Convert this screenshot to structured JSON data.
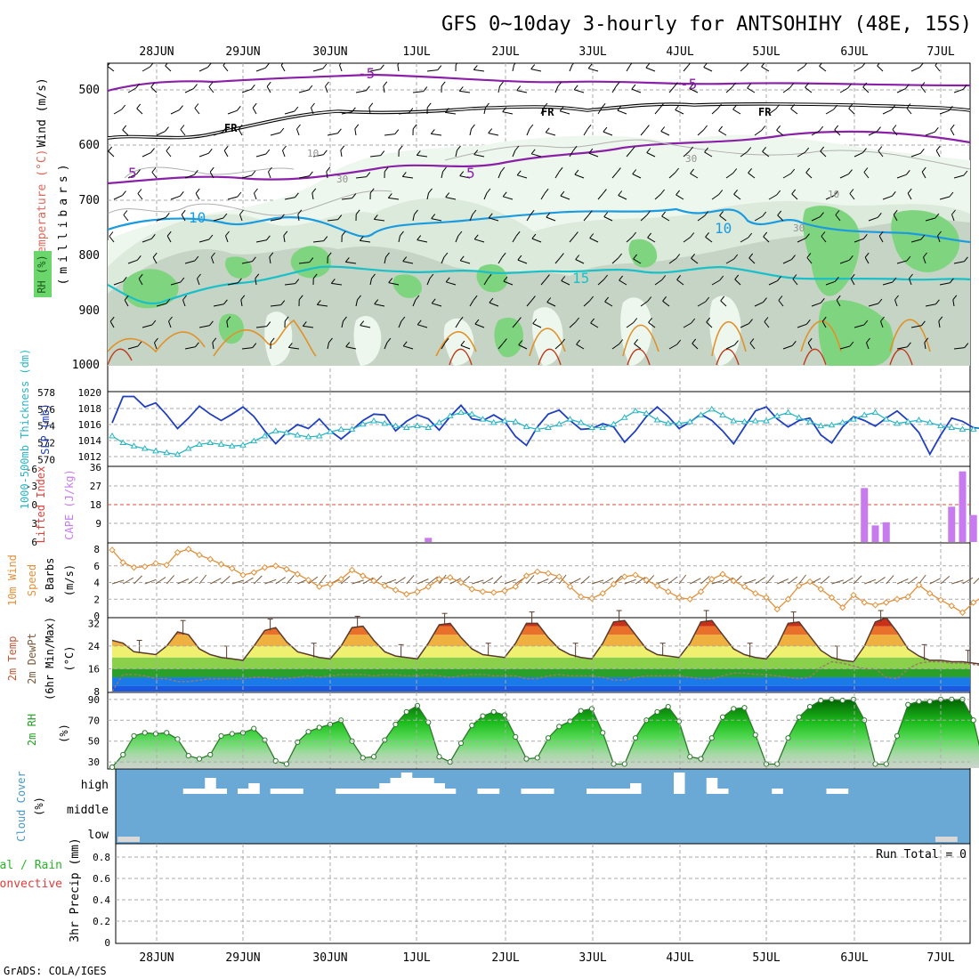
{
  "title": "GFS 0~10day 3-hourly for ANTSOHIHY (48E, 15S)",
  "credit": "GrADS: COLA/IGES",
  "dates": [
    "28JUN",
    "29JUN",
    "30JUN",
    "1JUL",
    "2JUL",
    "3JUL",
    "4JUL",
    "5JUL",
    "6JUL",
    "7JUL"
  ],
  "panels": {
    "upper": {
      "ylabel_wind": "Wind (m/s)",
      "ylabel_temp": "Temperature (°C)",
      "ylabel_rh": "RH (%)",
      "ylabel_units": "(millibars)",
      "ticks": [
        "500",
        "600",
        "700",
        "800",
        "900",
        "1000"
      ],
      "labels": {
        "m5": "-5",
        "fr": "FR",
        "p5": "5",
        "p10": "10",
        "p15": "15",
        "rh30": "30",
        "rh10": "10"
      }
    },
    "pressure": {
      "ylabel_thick": "1000-500mb Thickness (dm)",
      "ylabel_slp": "SLP (mb)",
      "thick_ticks": [
        "578",
        "576",
        "574",
        "572",
        "570"
      ],
      "slp_ticks": [
        "1020",
        "1018",
        "1016",
        "1014",
        "1012"
      ]
    },
    "instab": {
      "ylabel_li": "Lifted Index",
      "ylabel_cape": "CAPE (J/kg)",
      "li_ticks": [
        "-6",
        "-3",
        "0",
        "3",
        "6"
      ],
      "cape_ticks": [
        "36",
        "27",
        "18",
        "9"
      ]
    },
    "wind10": {
      "ylabel_a": "10m Wind",
      "ylabel_b": "Speed",
      "ylabel_c": "& Barbs",
      "ylabel_unit": "(m/s)",
      "ticks": [
        "8",
        "6",
        "4",
        "2",
        "0"
      ]
    },
    "temp": {
      "ylabel_a": "2m Temp",
      "ylabel_b": "2m DewPt",
      "ylabel_c": "(6hr Min/Max)",
      "ylabel_unit": "(°C)",
      "ticks": [
        "32",
        "24",
        "16",
        "8"
      ]
    },
    "rh2m": {
      "ylabel": "2m RH",
      "ylabel_unit": "(%)",
      "ticks": [
        "90",
        "70",
        "50",
        "30"
      ]
    },
    "cloud": {
      "ylabel": "Cloud Cover",
      "ylabel_unit": "(%)",
      "ticks": [
        "high",
        "middle",
        "low"
      ]
    },
    "precip": {
      "ylabel_a": "Total / Rain",
      "ylabel_b": "Convective",
      "ylabel_c": "3hr Precip (mm)",
      "ticks": [
        "0.8",
        "0.6",
        "0.4",
        "0.2",
        "0"
      ],
      "run_total": "Run Total = 0"
    }
  },
  "chart_data": [
    {
      "type": "line",
      "panel": "pressure",
      "x_unit": "3-hour steps from 27JUN 12Z",
      "series": [
        {
          "name": "SLP (mb)",
          "color": "#1f3fbf",
          "values": [
            1016.2,
            1019.5,
            1019.5,
            1018.2,
            1018.7,
            1017.2,
            1015.5,
            1016.8,
            1018.3,
            1017.3,
            1016.5,
            1017.3,
            1018.2,
            1017.0,
            1015.2,
            1013.6,
            1015.0,
            1016.0,
            1015.5,
            1016.7,
            1015.2,
            1014.2,
            1015.3,
            1016.5,
            1017.3,
            1017.2,
            1015.2,
            1016.4,
            1017.2,
            1016.7,
            1015.3,
            1017.0,
            1018.4,
            1016.7,
            1016.5,
            1017.2,
            1016.4,
            1014.5,
            1013.4,
            1015.7,
            1017.3,
            1017.8,
            1016.5,
            1015.4,
            1015.5,
            1016.1,
            1015.7,
            1013.8,
            1015.2,
            1017.0,
            1018.2,
            1017.0,
            1015.5,
            1016.3,
            1017.3,
            1016.5,
            1015.2,
            1013.6,
            1015.7,
            1017.7,
            1018.2,
            1016.7,
            1015.7,
            1016.5,
            1016.8,
            1014.7,
            1013.7,
            1015.7,
            1017.0,
            1016.5,
            1015.8,
            1016.8,
            1017.7,
            1016.5,
            1015.0,
            1012.3,
            1014.7,
            1016.8,
            1016.4,
            1015.6,
            1015.5,
            1016.2
          ]
        },
        {
          "name": "1000-500mb Thickness (dm)",
          "color": "#2ab5c5",
          "values": [
            572.8,
            572.0,
            571.6,
            571.3,
            571.0,
            570.8,
            570.6,
            571.3,
            571.8,
            572.0,
            571.8,
            571.6,
            571.7,
            572.2,
            572.8,
            573.4,
            573.2,
            572.9,
            572.7,
            572.8,
            573.3,
            573.6,
            573.6,
            574.2,
            574.6,
            574.3,
            574.0,
            573.8,
            574.0,
            573.8,
            574.4,
            575.2,
            575.6,
            575.4,
            574.8,
            574.4,
            574.6,
            574.5,
            573.9,
            573.6,
            573.8,
            574.2,
            574.8,
            574.4,
            573.8,
            573.8,
            574.2,
            575.0,
            575.8,
            575.5,
            574.7,
            574.3,
            574.3,
            574.5,
            575.3,
            576.0,
            575.3,
            574.6,
            574.5,
            574.6,
            574.6,
            575.2,
            575.6,
            575.0,
            574.5,
            574.0,
            574.1,
            574.4,
            574.8,
            575.3,
            575.6,
            574.8,
            574.3,
            574.5,
            574.7,
            574.4,
            574.0,
            573.8,
            573.6,
            573.6,
            574.0,
            574.4
          ]
        }
      ],
      "ylim_slp": [
        1011,
        1020
      ],
      "ylim_thick": [
        569.5,
        578
      ]
    },
    {
      "type": "bar",
      "panel": "instab",
      "series": [
        {
          "name": "CAPE (J/kg)",
          "color": "#c77bef",
          "points": [
            [
              29,
              2
            ],
            [
              69,
              26
            ],
            [
              70,
              8
            ],
            [
              71,
              9.5
            ],
            [
              77,
              17
            ],
            [
              78,
              34
            ],
            [
              79,
              13
            ],
            [
              80,
              13
            ]
          ]
        }
      ],
      "ylim": [
        0,
        36
      ]
    },
    {
      "type": "line",
      "panel": "wind10",
      "series": [
        {
          "name": "10m Wind Speed",
          "color": "#e0903a",
          "values": [
            7.9,
            6.4,
            5.8,
            5.9,
            6.3,
            6.1,
            7.6,
            8.0,
            7.3,
            6.8,
            6.2,
            5.7,
            4.9,
            5.2,
            5.8,
            6.0,
            5.6,
            5.0,
            4.3,
            3.5,
            3.8,
            4.4,
            5.5,
            4.8,
            4.2,
            3.6,
            3.1,
            2.6,
            2.9,
            3.5,
            4.4,
            4.6,
            4.0,
            3.2,
            2.9,
            2.8,
            3.0,
            3.5,
            4.8,
            5.3,
            5.1,
            4.7,
            3.5,
            2.3,
            2.1,
            2.7,
            3.8,
            4.7,
            4.9,
            4.3,
            3.6,
            2.9,
            2.2,
            2.0,
            2.9,
            4.4,
            5.0,
            4.2,
            3.5,
            2.7,
            2.2,
            0.8,
            2.0,
            3.6,
            4.1,
            3.2,
            2.2,
            1.0,
            2.5,
            1.6,
            1.3,
            1.6,
            2.0,
            2.3,
            3.7,
            2.7,
            1.9,
            1.2,
            0.4,
            1.6,
            2.4,
            2.7
          ]
        }
      ],
      "ylim": [
        0,
        8
      ]
    },
    {
      "type": "area",
      "panel": "temp",
      "series": [
        {
          "name": "2m Temp",
          "color": "#5a3a2a",
          "values": [
            26.0,
            25.0,
            22.0,
            21.5,
            21.0,
            24.0,
            29.0,
            28.0,
            23.0,
            21.0,
            20.0,
            19.5,
            19.0,
            24.0,
            29.5,
            30.5,
            25.5,
            22.0,
            21.0,
            20.0,
            19.5,
            24.0,
            30.5,
            31.0,
            26.0,
            22.0,
            20.5,
            20.0,
            19.5,
            25.0,
            31.5,
            32.0,
            27.0,
            23.0,
            21.0,
            20.5,
            20.0,
            25.0,
            32.0,
            32.0,
            27.0,
            23.0,
            21.0,
            20.0,
            19.5,
            25.0,
            32.5,
            33.0,
            28.0,
            23.0,
            21.0,
            20.5,
            20.0,
            25.0,
            32.5,
            33.0,
            28.0,
            23.0,
            21.0,
            20.0,
            19.5,
            24.0,
            32.0,
            32.5,
            27.5,
            22.5,
            20.0,
            19.0,
            18.5,
            24.0,
            32.5,
            34.0,
            29.0,
            23.0,
            20.5,
            19.0,
            19.0,
            18.5,
            18.5,
            18.0,
            17.5,
            16.5
          ]
        },
        {
          "name": "2m DewPt",
          "color": "#9a7a6a",
          "values": [
            8.0,
            14.0,
            14.0,
            13.5,
            12.5,
            12.5,
            11.5,
            11.5,
            12.0,
            12.5,
            12.5,
            12.5,
            12.5,
            13.0,
            13.0,
            12.5,
            12.5,
            13.0,
            13.5,
            13.0,
            13.5,
            14.0,
            14.0,
            14.0,
            13.5,
            14.0,
            14.0,
            13.5,
            13.5,
            14.0,
            13.5,
            13.0,
            13.5,
            14.0,
            14.0,
            13.5,
            13.5,
            13.5,
            12.5,
            12.5,
            13.5,
            14.0,
            13.5,
            13.5,
            13.5,
            13.0,
            12.0,
            12.0,
            13.0,
            13.5,
            13.5,
            13.5,
            13.5,
            13.0,
            12.5,
            12.5,
            13.5,
            14.5,
            14.5,
            14.0,
            14.0,
            13.5,
            13.0,
            12.5,
            13.0,
            16.5,
            18.5,
            18.0,
            17.0,
            16.0,
            16.0,
            13.0,
            12.5,
            16.0,
            18.0,
            18.5,
            18.5,
            18.0,
            18.0,
            17.5,
            17.0,
            17.0
          ]
        }
      ],
      "ylim": [
        8,
        34
      ]
    },
    {
      "type": "area",
      "panel": "rh2m",
      "series": [
        {
          "name": "2m RH",
          "color": "#2a7a2a",
          "values": [
            25,
            37,
            55,
            58,
            57,
            58,
            52,
            36,
            33,
            37,
            55,
            57,
            58,
            62,
            51,
            31,
            28,
            49,
            59,
            63,
            66,
            70,
            50,
            34,
            35,
            51,
            66,
            78,
            84,
            68,
            35,
            30,
            48,
            65,
            74,
            78,
            75,
            54,
            33,
            34,
            53,
            64,
            69,
            79,
            81,
            58,
            28,
            28,
            53,
            70,
            78,
            83,
            69,
            35,
            33,
            53,
            73,
            81,
            82,
            56,
            28,
            28,
            53,
            73,
            83,
            89,
            90,
            89,
            90,
            70,
            28,
            28,
            55,
            85,
            88,
            88,
            90,
            90,
            90,
            70,
            25,
            28
          ]
        }
      ],
      "ylim": [
        25,
        95
      ]
    },
    {
      "type": "bar",
      "panel": "cloud",
      "series": [
        {
          "name": "high",
          "color": "#ffffff",
          "points": [
            [
              7,
              1
            ],
            [
              8,
              1
            ],
            [
              9,
              3
            ],
            [
              10,
              1
            ],
            [
              12,
              1
            ],
            [
              13,
              2
            ],
            [
              15,
              1
            ],
            [
              16,
              1
            ],
            [
              17,
              1
            ],
            [
              21,
              1
            ],
            [
              22,
              1
            ],
            [
              23,
              1
            ],
            [
              24,
              1
            ],
            [
              25,
              2
            ],
            [
              26,
              3
            ],
            [
              27,
              4
            ],
            [
              28,
              3
            ],
            [
              29,
              3
            ],
            [
              30,
              2
            ],
            [
              31,
              1
            ],
            [
              34,
              1
            ],
            [
              35,
              1
            ],
            [
              38,
              1
            ],
            [
              39,
              1
            ],
            [
              40,
              1
            ],
            [
              44,
              1
            ],
            [
              45,
              1
            ],
            [
              46,
              1
            ],
            [
              47,
              1
            ],
            [
              48,
              2
            ],
            [
              52,
              4
            ],
            [
              55,
              3
            ],
            [
              56,
              1
            ],
            [
              61,
              1
            ],
            [
              66,
              1
            ],
            [
              67,
              1
            ]
          ]
        },
        {
          "name": "low",
          "color": "#d8d8d8",
          "points": [
            [
              1,
              1
            ],
            [
              2,
              1
            ],
            [
              76,
              1
            ],
            [
              77,
              1
            ]
          ]
        }
      ]
    },
    {
      "type": "bar",
      "panel": "precip",
      "series": [
        {
          "name": "Total / Rain",
          "values": []
        },
        {
          "name": "Convective",
          "values": []
        }
      ],
      "ylim": [
        0,
        0.9
      ]
    }
  ]
}
